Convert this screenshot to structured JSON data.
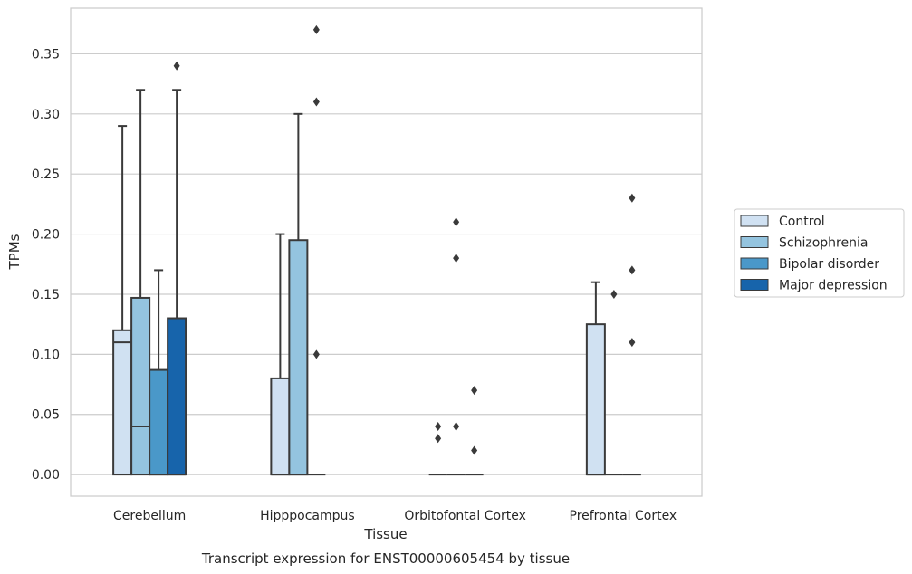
{
  "caption": "Transcript expression for ENST00000605454 by tissue",
  "chart_data": {
    "type": "box",
    "xlabel": "Tissue",
    "ylabel": "TPMs",
    "ylim": [
      -0.018,
      0.388
    ],
    "yticks": [
      "0.00",
      "0.05",
      "0.10",
      "0.15",
      "0.20",
      "0.25",
      "0.30",
      "0.35"
    ],
    "grid": "horizontal",
    "legend_position": "right",
    "categories": [
      "Cerebellum",
      "Hipppocampus",
      "Orbitofontal Cortex",
      "Prefrontal Cortex"
    ],
    "series": [
      {
        "name": "Control",
        "color": "#d0e1f2",
        "boxes": [
          {
            "q1": 0.0,
            "median": 0.11,
            "q3": 0.12,
            "whisker_low": 0.0,
            "whisker_high": 0.29,
            "outliers": []
          },
          {
            "q1": 0.0,
            "median": 0.0,
            "q3": 0.08,
            "whisker_low": 0.0,
            "whisker_high": 0.2,
            "outliers": []
          },
          {
            "q1": 0.0,
            "median": 0.0,
            "q3": 0.0,
            "whisker_low": 0.0,
            "whisker_high": 0.0,
            "outliers": [
              0.04,
              0.03
            ]
          },
          {
            "q1": 0.0,
            "median": 0.0,
            "q3": 0.125,
            "whisker_low": 0.0,
            "whisker_high": 0.16,
            "outliers": []
          }
        ]
      },
      {
        "name": "Schizophrenia",
        "color": "#94c4df",
        "boxes": [
          {
            "q1": 0.0,
            "median": 0.04,
            "q3": 0.147,
            "whisker_low": 0.0,
            "whisker_high": 0.32,
            "outliers": []
          },
          {
            "q1": 0.0,
            "median": 0.0,
            "q3": 0.195,
            "whisker_low": 0.0,
            "whisker_high": 0.3,
            "outliers": []
          },
          {
            "q1": 0.0,
            "median": 0.0,
            "q3": 0.0,
            "whisker_low": 0.0,
            "whisker_high": 0.0,
            "outliers": [
              0.21,
              0.18,
              0.04
            ]
          },
          {
            "q1": 0.0,
            "median": 0.0,
            "q3": 0.0,
            "whisker_low": 0.0,
            "whisker_high": 0.0,
            "outliers": [
              0.15
            ]
          }
        ]
      },
      {
        "name": "Bipolar disorder",
        "color": "#4a98c9",
        "boxes": [
          {
            "q1": 0.0,
            "median": 0.0,
            "q3": 0.087,
            "whisker_low": 0.0,
            "whisker_high": 0.17,
            "outliers": []
          },
          {
            "q1": 0.0,
            "median": 0.0,
            "q3": 0.0,
            "whisker_low": 0.0,
            "whisker_high": 0.0,
            "outliers": [
              0.37,
              0.31,
              0.1
            ]
          },
          {
            "q1": 0.0,
            "median": 0.0,
            "q3": 0.0,
            "whisker_low": 0.0,
            "whisker_high": 0.0,
            "outliers": [
              0.07,
              0.02
            ]
          },
          {
            "q1": 0.0,
            "median": 0.0,
            "q3": 0.0,
            "whisker_low": 0.0,
            "whisker_high": 0.0,
            "outliers": [
              0.23,
              0.17,
              0.11
            ]
          }
        ]
      },
      {
        "name": "Major depression",
        "color": "#1764ab",
        "boxes": [
          {
            "q1": 0.0,
            "median": 0.0,
            "q3": 0.13,
            "whisker_low": 0.0,
            "whisker_high": 0.32,
            "outliers": [
              0.34
            ]
          },
          null,
          null,
          null
        ]
      }
    ]
  }
}
